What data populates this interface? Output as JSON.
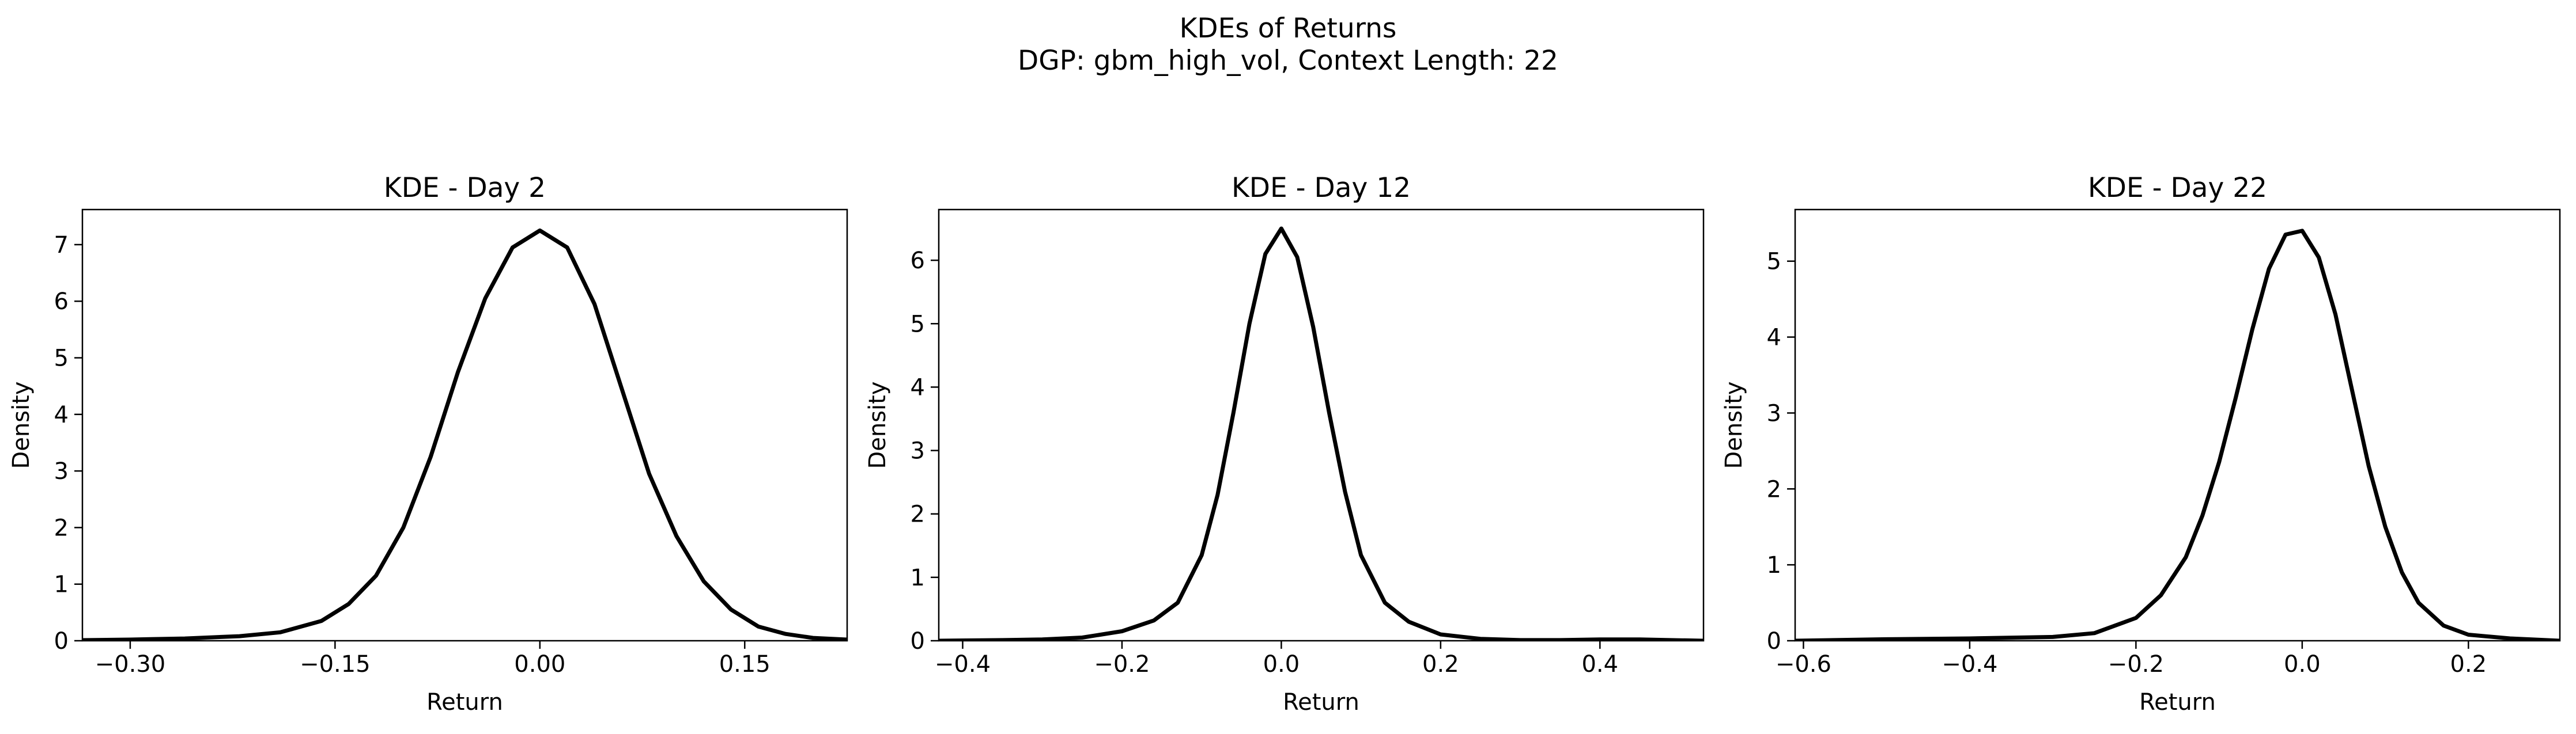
{
  "figure": {
    "title": "KDEs of Returns",
    "subtitle": "DGP: gbm_high_vol, Context Length: 22"
  },
  "chart_data": [
    {
      "type": "line",
      "title": "KDE - Day 2",
      "xlabel": "Return",
      "ylabel": "Density",
      "xlim": [
        -0.335,
        0.225
      ],
      "ylim": [
        0,
        7.62
      ],
      "xticks": [
        -0.3,
        -0.15,
        0.0,
        0.15
      ],
      "xtick_labels": [
        "−0.30",
        "−0.15",
        "0.00",
        "0.15"
      ],
      "yticks": [
        0,
        1,
        2,
        3,
        4,
        5,
        6,
        7
      ],
      "grid": false,
      "color": "#000000",
      "series": [
        {
          "x": [
            -0.335,
            -0.3,
            -0.26,
            -0.22,
            -0.19,
            -0.16,
            -0.14,
            -0.12,
            -0.1,
            -0.08,
            -0.06,
            -0.04,
            -0.02,
            0.0,
            0.02,
            0.04,
            0.06,
            0.08,
            0.1,
            0.12,
            0.14,
            0.16,
            0.18,
            0.2,
            0.225
          ],
          "y": [
            0.01,
            0.02,
            0.04,
            0.08,
            0.15,
            0.35,
            0.65,
            1.15,
            2.0,
            3.25,
            4.75,
            6.05,
            6.95,
            7.25,
            6.95,
            5.95,
            4.45,
            2.95,
            1.85,
            1.05,
            0.55,
            0.25,
            0.12,
            0.05,
            0.02
          ]
        }
      ]
    },
    {
      "type": "line",
      "title": "KDE - Day 12",
      "xlabel": "Return",
      "ylabel": "Density",
      "xlim": [
        -0.43,
        0.53
      ],
      "ylim": [
        0,
        6.8
      ],
      "xticks": [
        -0.4,
        -0.2,
        0.0,
        0.2,
        0.4
      ],
      "xtick_labels": [
        "−0.4",
        "−0.2",
        "0.0",
        "0.2",
        "0.4"
      ],
      "yticks": [
        0,
        1,
        2,
        3,
        4,
        5,
        6
      ],
      "grid": false,
      "color": "#000000",
      "series": [
        {
          "x": [
            -0.43,
            -0.35,
            -0.3,
            -0.25,
            -0.2,
            -0.16,
            -0.13,
            -0.1,
            -0.08,
            -0.06,
            -0.04,
            -0.02,
            0.0,
            0.02,
            0.04,
            0.06,
            0.08,
            0.1,
            0.13,
            0.16,
            0.2,
            0.25,
            0.3,
            0.35,
            0.4,
            0.45,
            0.53
          ],
          "y": [
            0.0,
            0.01,
            0.02,
            0.05,
            0.15,
            0.32,
            0.6,
            1.35,
            2.3,
            3.6,
            5.0,
            6.1,
            6.5,
            6.05,
            4.95,
            3.6,
            2.35,
            1.35,
            0.6,
            0.3,
            0.1,
            0.03,
            0.01,
            0.01,
            0.02,
            0.02,
            0.0
          ]
        }
      ]
    },
    {
      "type": "line",
      "title": "KDE - Day 22",
      "xlabel": "Return",
      "ylabel": "Density",
      "xlim": [
        -0.61,
        0.31
      ],
      "ylim": [
        0,
        5.68
      ],
      "xticks": [
        -0.6,
        -0.4,
        -0.2,
        0.0,
        0.2
      ],
      "xtick_labels": [
        "−0.6",
        "−0.4",
        "−0.2",
        "0.0",
        "0.2"
      ],
      "yticks": [
        0,
        1,
        2,
        3,
        4,
        5
      ],
      "grid": false,
      "color": "#000000",
      "series": [
        {
          "x": [
            -0.61,
            -0.5,
            -0.4,
            -0.3,
            -0.25,
            -0.2,
            -0.17,
            -0.14,
            -0.12,
            -0.1,
            -0.08,
            -0.06,
            -0.04,
            -0.02,
            0.0,
            0.02,
            0.04,
            0.06,
            0.08,
            0.1,
            0.12,
            0.14,
            0.17,
            0.2,
            0.25,
            0.31
          ],
          "y": [
            0.0,
            0.02,
            0.03,
            0.05,
            0.1,
            0.3,
            0.6,
            1.1,
            1.65,
            2.35,
            3.2,
            4.1,
            4.9,
            5.35,
            5.4,
            5.05,
            4.3,
            3.3,
            2.3,
            1.5,
            0.9,
            0.5,
            0.2,
            0.08,
            0.03,
            0.0
          ]
        }
      ]
    }
  ]
}
